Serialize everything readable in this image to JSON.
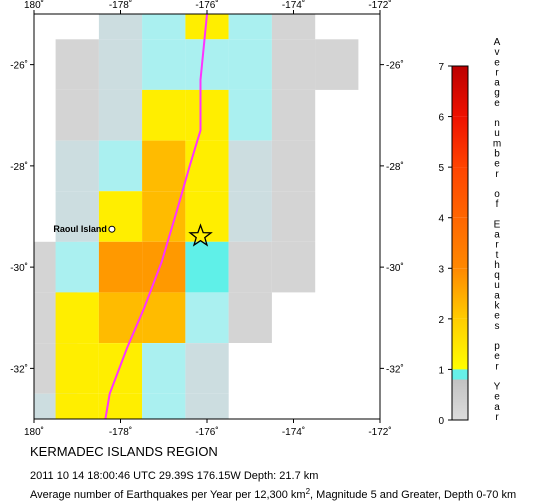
{
  "map": {
    "title": "KERMADEC ISLANDS REGION",
    "event_line": "2011 10 14 18:00:46 UTC 29.39S 176.15W Depth: 21.7 km",
    "caption_prefix": "Average number of Earthquakes per Year per 12,300 km",
    "caption_sup": "2",
    "caption_suffix": ", Magnitude 5 and Greater, Depth 0-70 km",
    "island_label": "Raoul Island",
    "x_ticks": [
      "180˚",
      "-178˚",
      "-176˚",
      "-174˚",
      "-172˚"
    ],
    "y_ticks": [
      "-26˚",
      "-28˚",
      "-30˚",
      "-32˚"
    ],
    "lon_range": [
      180,
      188
    ],
    "lat_range": [
      -33,
      -25
    ],
    "epicenter": {
      "lon": 183.85,
      "lat": -29.39
    },
    "island": {
      "lon": 181.8,
      "lat": -29.25
    },
    "trench_line_color": "#ff33ff",
    "trench_points": [
      [
        184.0,
        -25.0
      ],
      [
        183.85,
        -26.3
      ],
      [
        183.85,
        -27.3
      ],
      [
        183.6,
        -28.0
      ],
      [
        183.3,
        -28.9
      ],
      [
        182.95,
        -29.9
      ],
      [
        182.55,
        -30.8
      ],
      [
        182.15,
        -31.6
      ],
      [
        181.75,
        -32.5
      ],
      [
        181.65,
        -33.0
      ]
    ]
  },
  "grid": {
    "cell_lon_step": 1.0,
    "cell_lat_step": 1.0,
    "lat_rows": [
      -25,
      -26,
      -27,
      -28,
      -29,
      -30,
      -31,
      -32,
      -33
    ],
    "lon_cols": [
      180,
      181,
      182,
      183,
      184,
      185,
      186,
      187
    ],
    "rows": [
      {
        "lat_top": -25.0,
        "lat_bot": -25.5,
        "cells": [
          [
            180.5,
            0
          ],
          [
            181.0,
            0
          ],
          [
            181.5,
            0.5
          ],
          [
            182.5,
            0.8
          ],
          [
            183.5,
            1.1
          ],
          [
            184.5,
            0.7
          ],
          [
            185.5,
            0.3
          ]
        ]
      },
      {
        "lat_top": -25.5,
        "lat_bot": -26.5,
        "cells": [
          [
            180.5,
            0.3
          ],
          [
            181.5,
            0.6
          ],
          [
            182.5,
            0.7
          ],
          [
            183.5,
            0.8
          ],
          [
            184.5,
            0.7
          ],
          [
            185.5,
            0.3
          ],
          [
            186.5,
            0.3
          ]
        ]
      },
      {
        "lat_top": -26.5,
        "lat_bot": -27.5,
        "cells": [
          [
            180.5,
            0.4
          ],
          [
            181.5,
            0.6
          ],
          [
            182.5,
            1.2
          ],
          [
            183.5,
            1.2
          ],
          [
            184.5,
            0.7
          ],
          [
            185.5,
            0.3
          ]
        ]
      },
      {
        "lat_top": -27.5,
        "lat_bot": -28.5,
        "cells": [
          [
            180.5,
            0.5
          ],
          [
            181.5,
            0.7
          ],
          [
            182.5,
            1.5
          ],
          [
            183.5,
            1.1
          ],
          [
            184.5,
            0.6
          ],
          [
            185.5,
            0.3
          ]
        ]
      },
      {
        "lat_top": -28.5,
        "lat_bot": -29.5,
        "cells": [
          [
            180.5,
            0.6
          ],
          [
            181.5,
            1.1
          ],
          [
            182.5,
            1.6
          ],
          [
            183.5,
            1.2
          ],
          [
            184.5,
            0.6
          ],
          [
            185.5,
            0.3
          ]
        ]
      },
      {
        "lat_top": -29.5,
        "lat_bot": -30.5,
        "cells": [
          [
            180.0,
            0.3
          ],
          [
            180.5,
            0.8
          ],
          [
            181.5,
            2.0
          ],
          [
            182.5,
            1.9
          ],
          [
            183.5,
            0.9
          ],
          [
            184.5,
            0.3
          ],
          [
            185.5,
            0.3
          ]
        ]
      },
      {
        "lat_top": -30.5,
        "lat_bot": -31.5,
        "cells": [
          [
            180.0,
            0.4
          ],
          [
            180.5,
            1.1
          ],
          [
            181.5,
            1.6
          ],
          [
            182.5,
            1.5
          ],
          [
            183.5,
            0.7
          ],
          [
            184.5,
            0.3
          ]
        ]
      },
      {
        "lat_top": -31.5,
        "lat_bot": -32.5,
        "cells": [
          [
            180.0,
            0.3
          ],
          [
            180.5,
            1.1
          ],
          [
            181.5,
            1.2
          ],
          [
            182.5,
            0.8
          ],
          [
            183.5,
            0.5
          ]
        ]
      },
      {
        "lat_top": -32.5,
        "lat_bot": -33.0,
        "cells": [
          [
            180.0,
            0.5
          ],
          [
            180.5,
            1.1
          ],
          [
            181.5,
            1.1
          ],
          [
            182.5,
            0.7
          ],
          [
            183.5,
            0.5
          ]
        ]
      }
    ]
  },
  "colorbar": {
    "ticks": [
      "0",
      "1",
      "2",
      "3",
      "4",
      "5",
      "6",
      "7"
    ],
    "range": [
      0,
      7
    ],
    "title_chars": [
      "A",
      "v",
      "e",
      "r",
      "a",
      "g",
      "e",
      " ",
      "n",
      "u",
      "m",
      "b",
      "e",
      "r",
      " ",
      "o",
      "f",
      " ",
      "E",
      "a",
      "r",
      "t",
      "h",
      "q",
      "u",
      "a",
      "k",
      "e",
      "s",
      " ",
      "p",
      "e",
      "r",
      " ",
      "Y",
      "e",
      "a",
      "r"
    ]
  }
}
